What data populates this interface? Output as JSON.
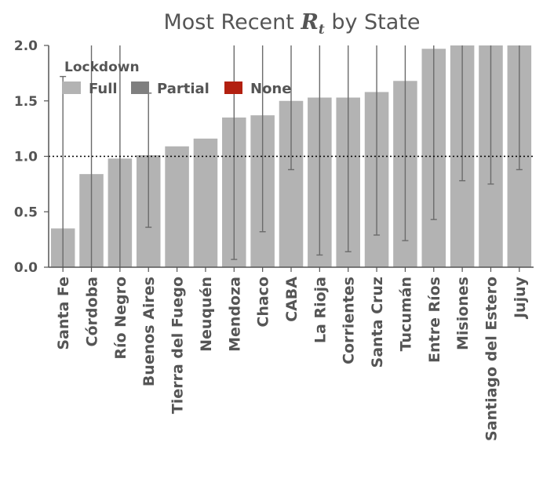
{
  "chart_data": {
    "type": "bar",
    "title_prefix": "Most Recent ",
    "title_symbol": "R",
    "title_subscript": "t",
    "title_suffix": " by State",
    "categories": [
      "Santa Fe",
      "Córdoba",
      "Río Negro",
      "Buenos Aires",
      "Tierra del Fuego",
      "Neuquén",
      "Mendoza",
      "Chaco",
      "CABA",
      "La Rioja",
      "Corrientes",
      "Santa Cruz",
      "Tucumán",
      "Entre Ríos",
      "Misiones",
      "Santiago del Estero",
      "Jujuy"
    ],
    "values": [
      0.35,
      0.84,
      0.98,
      1.01,
      1.09,
      1.16,
      1.35,
      1.37,
      1.5,
      1.53,
      1.53,
      1.58,
      1.68,
      1.97,
      2.0,
      2.0,
      2.0
    ],
    "error_low": [
      0.0,
      0.0,
      0.0,
      0.36,
      1.09,
      1.16,
      0.07,
      0.32,
      0.88,
      0.11,
      0.14,
      0.29,
      0.24,
      0.43,
      0.78,
      0.75,
      0.88
    ],
    "error_high": [
      1.72,
      2.0,
      2.0,
      1.57,
      1.09,
      1.16,
      2.0,
      2.0,
      2.0,
      2.0,
      2.0,
      2.0,
      2.0,
      2.0,
      2.0,
      2.0,
      2.0
    ],
    "lockdown": [
      "Full",
      "Full",
      "Full",
      "Full",
      "Full",
      "Full",
      "Full",
      "Full",
      "Full",
      "Full",
      "Full",
      "Full",
      "Full",
      "Full",
      "Full",
      "Full",
      "Full"
    ],
    "ylim": [
      0,
      2.0
    ],
    "yticks": [
      "0.0",
      "0.5",
      "1.0",
      "1.5",
      "2.0"
    ],
    "ytick_values": [
      0,
      0.5,
      1.0,
      1.5,
      2.0
    ],
    "reference_line": 1.0,
    "grid": false,
    "legend": {
      "title": "Lockdown",
      "placement": "top-left",
      "items": [
        {
          "label": "Full",
          "color": "#b3b3b3"
        },
        {
          "label": "Partial",
          "color": "#7f7f7f"
        },
        {
          "label": "None",
          "color": "#b22010"
        }
      ]
    },
    "colors": {
      "bar_full": "#b3b3b3",
      "error_bar": "#6b6b6b",
      "axis": "#555555",
      "reference": "#000000"
    }
  }
}
